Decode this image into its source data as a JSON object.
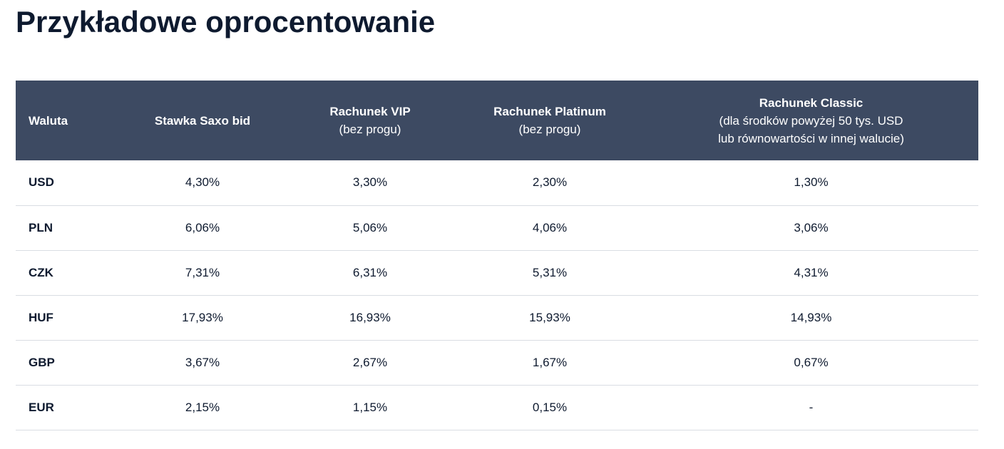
{
  "page": {
    "title": "Przykładowe oprocentowanie"
  },
  "table": {
    "headers": [
      {
        "main": "Waluta",
        "sub": []
      },
      {
        "main": "Stawka Saxo bid",
        "sub": []
      },
      {
        "main": "Rachunek VIP",
        "sub": [
          "(bez progu)"
        ]
      },
      {
        "main": "Rachunek Platinum",
        "sub": [
          "(bez progu)"
        ]
      },
      {
        "main": "Rachunek Classic",
        "sub": [
          "(dla środków powyżej 50 tys. USD",
          "lub równowartości w innej walucie)"
        ]
      }
    ],
    "rows": [
      {
        "currency": "USD",
        "values": [
          "4,30%",
          "3,30%",
          "2,30%",
          "1,30%"
        ]
      },
      {
        "currency": "PLN",
        "values": [
          "6,06%",
          "5,06%",
          "4,06%",
          "3,06%"
        ]
      },
      {
        "currency": "CZK",
        "values": [
          "7,31%",
          "6,31%",
          "5,31%",
          "4,31%"
        ]
      },
      {
        "currency": "HUF",
        "values": [
          "17,93%",
          "16,93%",
          "15,93%",
          "14,93%"
        ]
      },
      {
        "currency": "GBP",
        "values": [
          "3,67%",
          "2,67%",
          "1,67%",
          "0,67%"
        ]
      },
      {
        "currency": "EUR",
        "values": [
          "2,15%",
          "1,15%",
          "0,15%",
          "-"
        ]
      }
    ]
  },
  "colors": {
    "header_bg": "#3d4a62",
    "row_divider": "#d9dde3",
    "text_dark": "#0e1a2f"
  }
}
